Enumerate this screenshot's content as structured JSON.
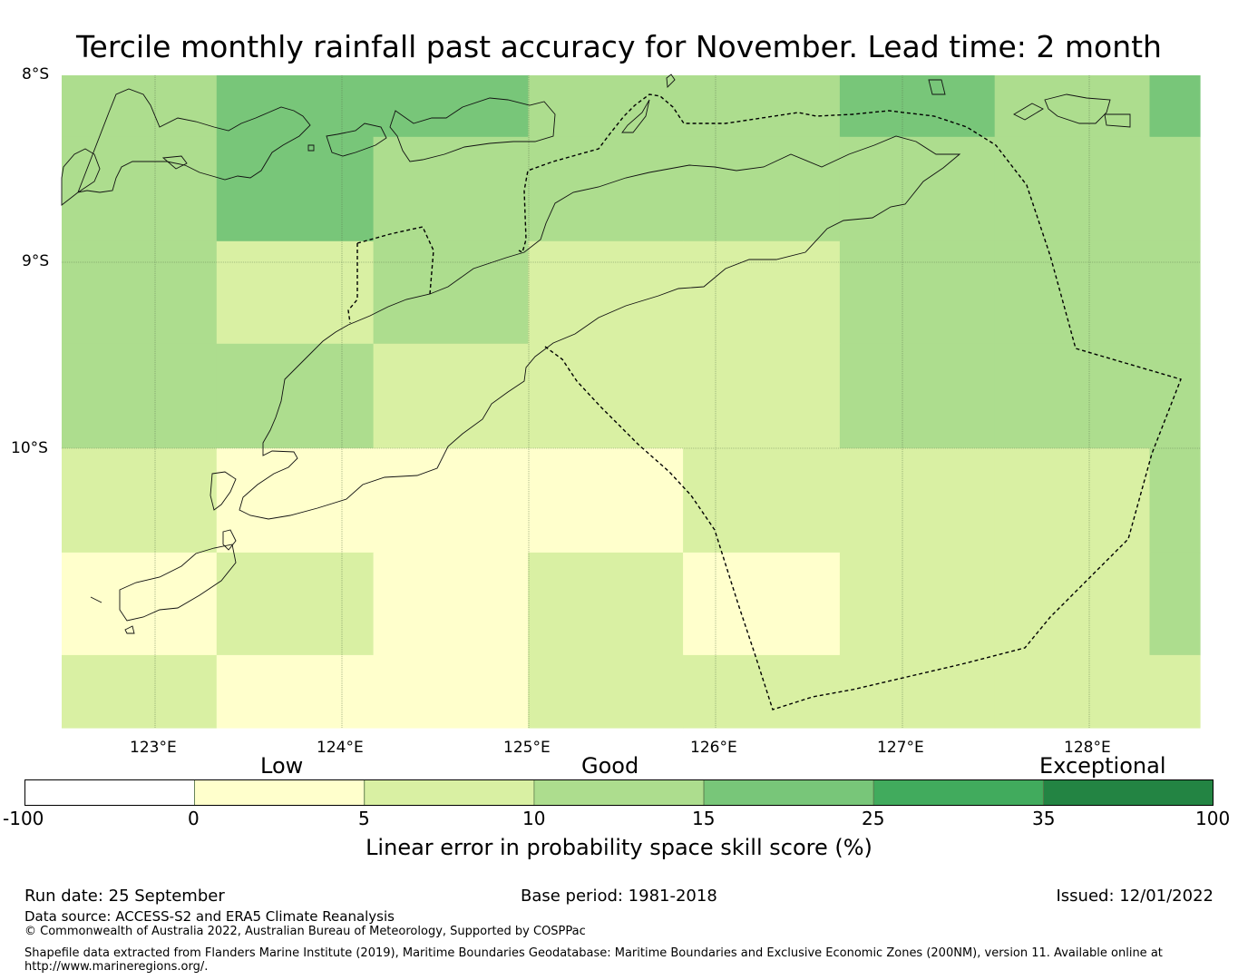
{
  "title": "Tercile monthly rainfall past accuracy for November. Lead time: 2 month",
  "lat_labels": [
    "8°S",
    "9°S",
    "10°S"
  ],
  "lon_labels": [
    "123°E",
    "124°E",
    "125°E",
    "126°E",
    "127°E",
    "128°E"
  ],
  "map": {
    "lon_range": [
      122.5,
      128.6
    ],
    "lat_range": [
      -8.0,
      -11.5
    ],
    "grid": {
      "row_lat_edges": [
        -8.0,
        -8.33,
        -8.89,
        -9.44,
        -10.0,
        -10.56,
        -11.11,
        -11.5
      ],
      "col_lon_edges": [
        122.5,
        123.33,
        124.17,
        125.0,
        125.83,
        126.67,
        127.5,
        128.33,
        128.6
      ],
      "skill_class": [
        [
          2,
          3,
          3,
          2,
          2,
          3,
          2,
          3
        ],
        [
          2,
          3,
          2,
          2,
          2,
          2,
          2,
          2
        ],
        [
          2,
          1,
          2,
          1,
          1,
          2,
          2,
          2
        ],
        [
          2,
          2,
          1,
          1,
          1,
          2,
          2,
          2
        ],
        [
          1,
          0,
          0,
          0,
          1,
          1,
          1,
          2
        ],
        [
          0,
          1,
          0,
          1,
          0,
          1,
          1,
          2
        ],
        [
          1,
          0,
          0,
          1,
          1,
          1,
          1,
          1
        ]
      ]
    }
  },
  "colorbar": {
    "category_labels": [
      "Low",
      "Good",
      "Exceptional"
    ],
    "ticks": [
      "-100",
      "0",
      "5",
      "10",
      "15",
      "25",
      "35",
      "100"
    ],
    "colors": [
      "#ffffff",
      "#ffffcc",
      "#d9f0a3",
      "#addd8e",
      "#78c679",
      "#41ab5d",
      "#238443"
    ],
    "title": "Linear error in probability space skill score (%)"
  },
  "footer": {
    "run_date": "Run date: 25 September",
    "base_period": "Base period: 1981-2018",
    "issued": "Issued: 12/01/2022",
    "data_source": "Data source: ACCESS-S2 and ERA5 Climate Reanalysis",
    "copyright": "© Commonwealth of Australia 2022, Australian Bureau of Meteorology, Supported by COSPPac",
    "shapefile_line1": "Shapefile data extracted from Flanders Marine Institute (2019), Maritime Boundaries Geodatabase: Maritime Boundaries and Exclusive Economic Zones (200NM), version 11. Available online at",
    "shapefile_line2": "http://www.marineregions.org/."
  }
}
